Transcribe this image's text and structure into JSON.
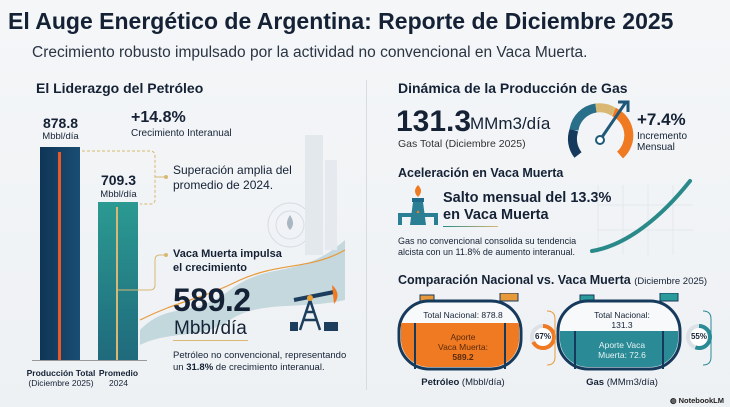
{
  "header": {
    "title": "El Auge Energético de Argentina: Reporte de Diciembre 2025",
    "subtitle": "Crecimiento robusto impulsado por la actividad no convencional en Vaca Muerta."
  },
  "oil": {
    "heading": "El Liderazgo del Petróleo",
    "bar1": {
      "value": "878.8",
      "unit": "Mbbl/día",
      "label1": "Producción Total",
      "label2": "(Diciembre 2025)",
      "num": 878.8
    },
    "bar2": {
      "value": "709.3",
      "unit": "Mbbl/día",
      "label1": "Promedio",
      "label2": "2024",
      "num": 709.3
    },
    "growth": "+14.8%",
    "growth_label": "Crecimiento Interanual",
    "callout1_l1": "Superación amplia del",
    "callout1_l2": "promedio de 2024.",
    "callout2_l1": "Vaca Muerta impulsa",
    "callout2_l2": "el crecimiento",
    "vm_value": "589.2",
    "vm_unit": "Mbbl/día",
    "note_l1": "Petróleo no convencional, representando",
    "note_pre": "un ",
    "note_bold": "31.8%",
    "note_post": " de crecimiento interanual."
  },
  "gas": {
    "heading": "Dinámica de la Producción de Gas",
    "value": "131.3",
    "unit": "MMm3/día",
    "label": "Gas Total (Diciembre 2025)",
    "growth": "+7.4%",
    "growth_l1": "Incremento",
    "growth_l2": "Mensual",
    "accel_heading": "Aceleración en Vaca Muerta",
    "accel_l1": "Salto mensual del 13.3%",
    "accel_l2": "en Vaca Muerta",
    "accel_note_l1": "Gas no convencional consolida su tendencia",
    "accel_note_l2": "alcista con un 11.8% de aumento interanual."
  },
  "comparison": {
    "heading": "Comparación Nacional vs. Vaca Muerta",
    "heading_suffix": "(Diciembre 2025)",
    "oil": {
      "total": "Total Nacional: 878.8",
      "aporte_l1": "Aporte",
      "aporte_l2": "Vaca Muerta:",
      "aporte_l3": "589.2",
      "pct": "67%",
      "pct_num": 67,
      "label_bold": "Petróleo",
      "label_rest": " (Mbbl/día)"
    },
    "gas": {
      "total_l1": "Total Nacional:",
      "total_l2": "131.3",
      "aporte_l1": "Aporte Vaca",
      "aporte_l2": "Muerta: 72.6",
      "pct": "55%",
      "pct_num": 55,
      "label_bold": "Gas",
      "label_rest": " (MMm3/día)"
    }
  },
  "footer": {
    "brand": "NotebookLM"
  },
  "colors": {
    "navy": "#163a5c",
    "teal": "#2a8a8a",
    "orange": "#f07a22",
    "gold": "#d8b872"
  }
}
